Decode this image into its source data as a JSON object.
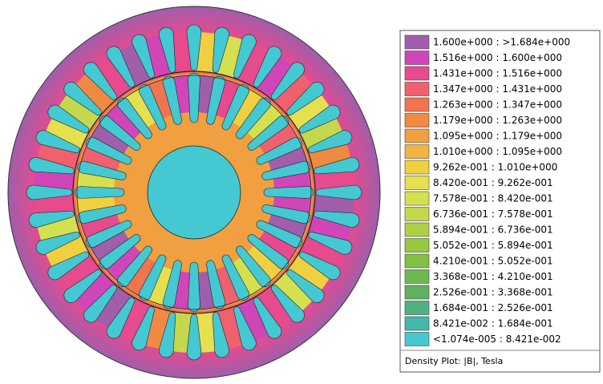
{
  "legend": {
    "entries": [
      {
        "label": "1.600e+000 : >1.684e+000",
        "color": "#a05eab"
      },
      {
        "label": "1.516e+000 : 1.600e+000",
        "color": "#d046b8"
      },
      {
        "label": "1.431e+000 : 1.516e+000",
        "color": "#e84a8e"
      },
      {
        "label": "1.347e+000 : 1.431e+000",
        "color": "#f0606e"
      },
      {
        "label": "1.263e+000 : 1.347e+000",
        "color": "#f07450"
      },
      {
        "label": "1.179e+000 : 1.263e+000",
        "color": "#f08a42"
      },
      {
        "label": "1.095e+000 : 1.179e+000",
        "color": "#f0a040"
      },
      {
        "label": "1.010e+000 : 1.095e+000",
        "color": "#f0b442"
      },
      {
        "label": "9.262e-001 : 1.010e+000",
        "color": "#f0d040"
      },
      {
        "label": "8.420e-001 : 9.262e-001",
        "color": "#e6e050"
      },
      {
        "label": "7.578e-001 : 8.420e-001",
        "color": "#d4e050"
      },
      {
        "label": "6.736e-001 : 7.578e-001",
        "color": "#c4d84e"
      },
      {
        "label": "5.894e-001 : 6.736e-001",
        "color": "#aed044"
      },
      {
        "label": "5.052e-001 : 5.894e-001",
        "color": "#96c842"
      },
      {
        "label": "4.210e-001 : 5.052e-001",
        "color": "#80c042"
      },
      {
        "label": "3.368e-001 : 4.210e-001",
        "color": "#6eb852"
      },
      {
        "label": "2.526e-001 : 3.368e-001",
        "color": "#5eb062"
      },
      {
        "label": "1.684e-001 : 2.526e-001",
        "color": "#50b082"
      },
      {
        "label": "8.421e-002 : 1.684e-001",
        "color": "#44b8aa"
      },
      {
        "label": "<1.074e-005 : 8.421e-002",
        "color": "#44c8d2"
      }
    ],
    "caption": "Density Plot: |B|, Tesla"
  }
}
